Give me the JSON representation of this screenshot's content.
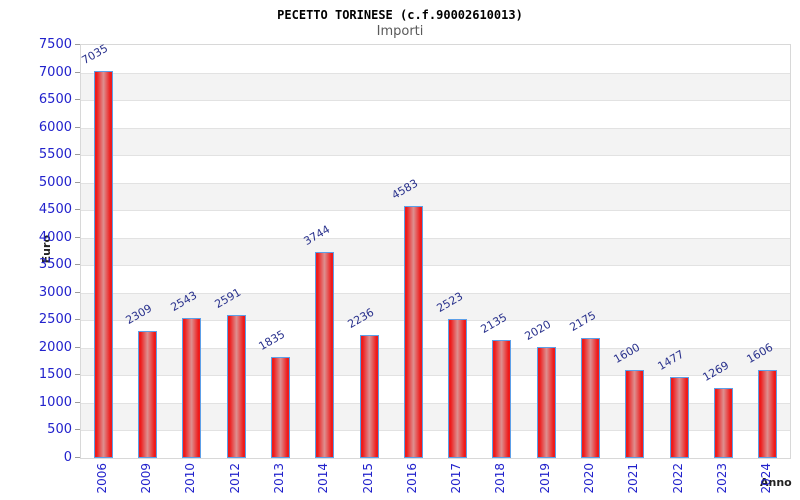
{
  "header": {
    "title": "PECETTO TORINESE (c.f.90002610013)",
    "subtitle": "Importi"
  },
  "chart_data": {
    "type": "bar",
    "title": "PECETTO TORINESE (c.f.90002610013)",
    "subtitle": "Importi",
    "xlabel": "Anno",
    "ylabel": "Euro",
    "categories": [
      "2006",
      "2009",
      "2010",
      "2012",
      "2013",
      "2014",
      "2015",
      "2016",
      "2017",
      "2018",
      "2019",
      "2020",
      "2021",
      "2022",
      "2023",
      "2024"
    ],
    "values": [
      7035,
      2309,
      2543,
      2591,
      1835,
      3744,
      2236,
      4583,
      2523,
      2135,
      2020,
      2175,
      1600,
      1477,
      1269,
      1606
    ],
    "ylim": [
      0,
      7500
    ],
    "ytick_step": 500,
    "grid": true,
    "legend_position": "none",
    "colors": {
      "bar_edge": "#ee1c1c",
      "bar_center": "#dd9090",
      "bar_border": "#5c9fe8",
      "value_label": "#28308c",
      "axis_tick_label": "#2222cc",
      "band_alt": "#f3f3f3",
      "gridline": "#e2e2e2",
      "frame": "#d8d8d8",
      "axis_title": "#222222",
      "subtitle": "#5a5a5a"
    }
  }
}
